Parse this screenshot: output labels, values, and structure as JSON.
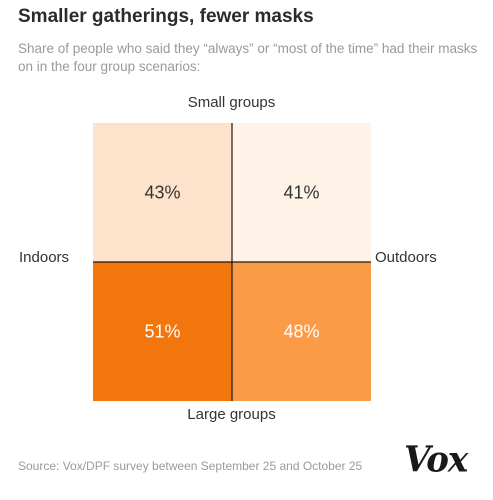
{
  "title": "Smaller gatherings, fewer masks",
  "subtitle": "Share of people who said they “always” or “most of the time” had their masks on in the four group scenarios:",
  "source": "Source: Vox/DPF survey between September 25 and October 25",
  "logo": "Vox",
  "chart_data": {
    "type": "heatmap",
    "title": "Smaller gatherings, fewer masks",
    "rows": [
      "Small groups",
      "Large groups"
    ],
    "columns": [
      "Indoors",
      "Outdoors"
    ],
    "axis_labels": {
      "top": "Small groups",
      "bottom": "Large groups",
      "left": "Indoors",
      "right": "Outdoors"
    },
    "cells": [
      {
        "row": "Small groups",
        "column": "Indoors",
        "value": 43,
        "label": "43%",
        "color": "#fde3cc",
        "text_color": "#333333"
      },
      {
        "row": "Small groups",
        "column": "Outdoors",
        "value": 41,
        "label": "41%",
        "color": "#fff3e8",
        "text_color": "#333333"
      },
      {
        "row": "Large groups",
        "column": "Indoors",
        "value": 51,
        "label": "51%",
        "color": "#f2760c",
        "text_color": "#ffffff"
      },
      {
        "row": "Large groups",
        "column": "Outdoors",
        "value": 48,
        "label": "48%",
        "color": "#fb9b47",
        "text_color": "#ffffff"
      }
    ],
    "unit": "%",
    "divider_color": "#1a1a1a"
  }
}
